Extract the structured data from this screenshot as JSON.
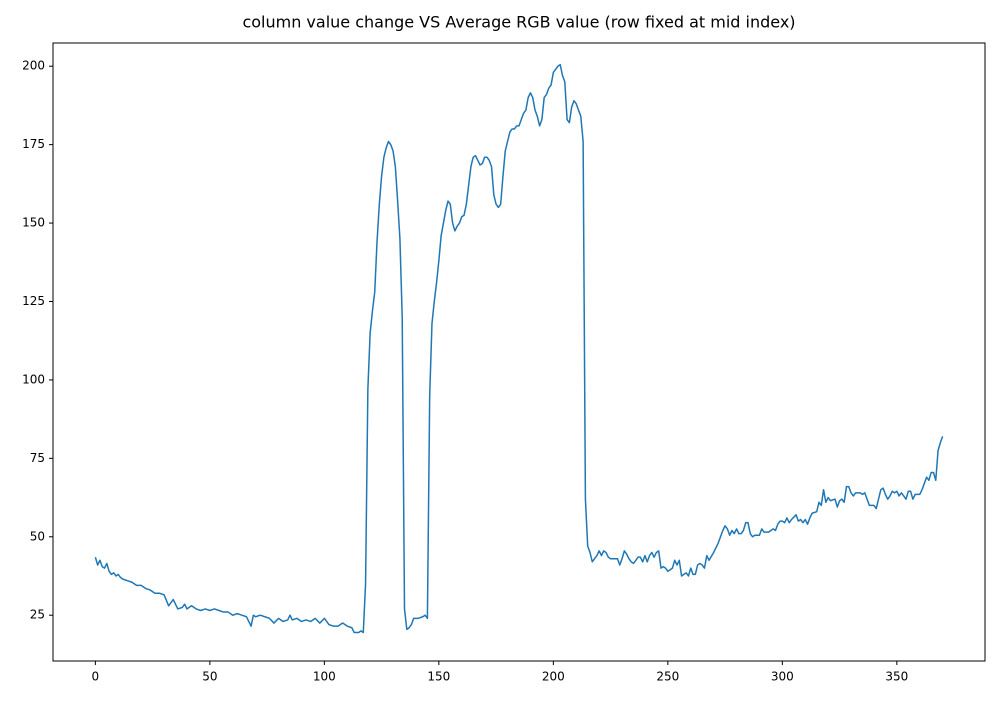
{
  "chart_data": {
    "type": "line",
    "title": "column value change VS Average RGB value (row fixed at mid index)",
    "color": "#1f77b4",
    "xlim": [
      -18.5,
      388.5
    ],
    "xticks": [
      0,
      50,
      100,
      150,
      200,
      250,
      300,
      350
    ],
    "ylim": [
      10.4,
      207.4
    ],
    "yticks": [
      25,
      50,
      75,
      100,
      125,
      150,
      175,
      200
    ],
    "grid": false,
    "x": [
      0,
      1,
      2,
      3,
      4,
      5,
      6,
      7,
      8,
      9,
      10,
      11,
      12,
      14,
      16,
      18,
      20,
      22,
      24,
      26,
      28,
      30,
      32,
      34,
      36,
      38,
      39,
      40,
      42,
      44,
      46,
      48,
      50,
      52,
      54,
      56,
      58,
      60,
      62,
      64,
      66,
      68,
      69,
      70,
      72,
      74,
      76,
      78,
      80,
      82,
      84,
      85,
      86,
      88,
      90,
      92,
      94,
      96,
      98,
      100,
      102,
      104,
      106,
      108,
      110,
      112,
      113,
      115,
      116,
      117,
      118,
      119,
      120,
      121,
      122,
      123,
      124,
      125,
      126,
      127,
      128,
      129,
      130,
      131,
      132,
      133,
      134,
      135,
      136,
      137,
      138,
      139,
      141,
      143,
      144,
      145,
      146,
      147,
      148,
      149,
      150,
      151,
      152,
      153,
      154,
      155,
      156,
      157,
      158,
      159,
      160,
      161,
      162,
      163,
      164,
      165,
      166,
      167,
      168,
      169,
      170,
      171,
      172,
      173,
      174,
      175,
      176,
      177,
      178,
      179,
      180,
      181,
      182,
      183,
      184,
      185,
      186,
      187,
      188,
      189,
      190,
      191,
      192,
      193,
      194,
      195,
      196,
      197,
      198,
      199,
      200,
      201,
      202,
      203,
      204,
      205,
      206,
      207,
      208,
      209,
      210,
      211,
      212,
      213,
      214,
      215,
      216,
      217,
      218,
      219,
      220,
      221,
      222,
      223,
      224,
      225,
      226,
      227,
      228,
      229,
      230,
      231,
      232,
      233,
      234,
      235,
      236,
      237,
      238,
      239,
      240,
      241,
      242,
      243,
      244,
      245,
      246,
      247,
      248,
      249,
      250,
      251,
      252,
      253,
      254,
      255,
      256,
      257,
      258,
      259,
      260,
      261,
      262,
      263,
      264,
      265,
      266,
      267,
      268,
      270,
      272,
      274,
      275,
      276,
      277,
      278,
      279,
      280,
      281,
      282,
      283,
      284,
      285,
      286,
      287,
      288,
      290,
      291,
      292,
      294,
      296,
      297,
      298,
      299,
      300,
      301,
      302,
      303,
      304,
      306,
      307,
      308,
      309,
      310,
      311,
      312,
      313,
      315,
      316,
      317,
      318,
      319,
      320,
      321,
      323,
      324,
      325,
      326,
      327,
      328,
      329,
      330,
      331,
      332,
      334,
      335,
      336,
      337,
      338,
      340,
      341,
      342,
      343,
      344,
      345,
      346,
      347,
      348,
      349,
      350,
      351,
      352,
      353,
      354,
      355,
      356,
      357,
      358,
      360,
      361,
      362,
      363,
      364,
      365,
      366,
      367,
      368,
      369,
      370
    ],
    "values": [
      43.5,
      41,
      42.5,
      40.5,
      40,
      41.5,
      39,
      38,
      38.5,
      37.5,
      38,
      37,
      36.5,
      36,
      35.5,
      34.5,
      34.5,
      33.5,
      33,
      32,
      32,
      31.5,
      28,
      30,
      27,
      27.5,
      28.5,
      27,
      28,
      27,
      26.5,
      27,
      26.5,
      27,
      26.5,
      26,
      26,
      25,
      25.5,
      25,
      24.5,
      21.5,
      25,
      24.5,
      25,
      24.5,
      24,
      22.5,
      24,
      23,
      23.5,
      25,
      23.5,
      24,
      23,
      23.5,
      23,
      24,
      22.5,
      24,
      22,
      21.5,
      21.5,
      22.5,
      21.5,
      21,
      19.5,
      19.5,
      20,
      19.5,
      35,
      97,
      115,
      122,
      128,
      144,
      156,
      165,
      171,
      174,
      176,
      175,
      173,
      168,
      157,
      145,
      120,
      27,
      20.5,
      21,
      22,
      24,
      24,
      24.5,
      25,
      24,
      95,
      118,
      125,
      131,
      138,
      146,
      150,
      154,
      157,
      156,
      150,
      147.5,
      149,
      150,
      152,
      152.5,
      156,
      162,
      168,
      171,
      171.5,
      170,
      168.5,
      169,
      171,
      171,
      170,
      168,
      159,
      156,
      155,
      156,
      165,
      173,
      176,
      179,
      180,
      180,
      181,
      181,
      183,
      185,
      186,
      190,
      191.5,
      190,
      186,
      184,
      181,
      183,
      190,
      191,
      193,
      194,
      198,
      199,
      200,
      200.5,
      197,
      195,
      183,
      182,
      187,
      189,
      188,
      186,
      184,
      176,
      62,
      47,
      45,
      42,
      43,
      44,
      45.5,
      44,
      45.5,
      45,
      43.5,
      43,
      43,
      43,
      43,
      41,
      43,
      45.5,
      44.5,
      43,
      42,
      41.5,
      42.5,
      43.5,
      43.5,
      42,
      44,
      42,
      44,
      45,
      43.5,
      45,
      45.5,
      40,
      40.5,
      40,
      39,
      39.5,
      40,
      42.5,
      41,
      42.5,
      37.5,
      38,
      38.5,
      37.5,
      40,
      38,
      38,
      41,
      41.5,
      41,
      40,
      44,
      42.5,
      45,
      48,
      52,
      53.5,
      52.5,
      50.5,
      52,
      51,
      52.5,
      51,
      51,
      52,
      54.5,
      54.5,
      51,
      50,
      50.5,
      50.5,
      52.5,
      51.5,
      51.5,
      52.5,
      52,
      54,
      55,
      55,
      54.5,
      56,
      54.5,
      55.5,
      57,
      55,
      55.5,
      54.5,
      55.5,
      54,
      56,
      57.5,
      58,
      61,
      60,
      65,
      61,
      62.5,
      61.5,
      62,
      59.5,
      61.5,
      62,
      61,
      66,
      66,
      64,
      63,
      64,
      64,
      63.5,
      64,
      62,
      60,
      60,
      59,
      62,
      65,
      65.5,
      63.5,
      62,
      63,
      64.5,
      64,
      64.5,
      63,
      64,
      63,
      62,
      64.5,
      64.5,
      62,
      63.5,
      63.5,
      65,
      67,
      69,
      68,
      70.5,
      70.5,
      68,
      77.5,
      80,
      82
    ]
  }
}
